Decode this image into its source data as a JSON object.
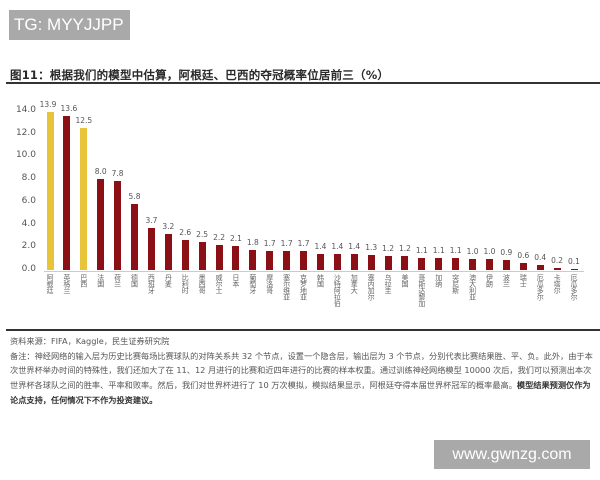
{
  "watermarks": {
    "top": "TG: MYYJJPP",
    "bottom": "www.gwnzg.com"
  },
  "figure": {
    "title": "图11：根据我们的模型中估算，阿根廷、巴西的夺冠概率位居前三（%）"
  },
  "chart_data": {
    "type": "bar",
    "title": "图11：根据我们的模型中估算，阿根廷、巴西的夺冠概率位居前三（%）",
    "xlabel": "",
    "ylabel": "%",
    "ylim": [
      0,
      14
    ],
    "yticks": [
      "0.0",
      "2.0",
      "4.0",
      "6.0",
      "8.0",
      "10.0",
      "12.0",
      "14.0"
    ],
    "grid": false,
    "legend": null,
    "categories": [
      "阿根廷",
      "英格兰",
      "巴西",
      "法国",
      "荷兰",
      "德国",
      "西班牙",
      "丹麦",
      "比利时",
      "墨西哥",
      "威尔士",
      "日本",
      "葡萄牙",
      "摩洛哥",
      "塞尔维亚",
      "克罗地亚",
      "韩国",
      "沙特阿拉伯",
      "加拿大",
      "塞内加尔",
      "乌拉圭",
      "美国",
      "哥斯达黎加",
      "加纳",
      "突尼斯",
      "澳大利亚",
      "伊朗",
      "波兰",
      "瑞士",
      "厄瓜多尔",
      "卡塔尔",
      "厄瓜多尔"
    ],
    "values": [
      13.9,
      13.6,
      12.5,
      8.0,
      7.8,
      5.8,
      3.7,
      3.2,
      2.6,
      2.5,
      2.2,
      2.1,
      1.8,
      1.7,
      1.7,
      1.7,
      1.4,
      1.4,
      1.4,
      1.3,
      1.2,
      1.2,
      1.1,
      1.1,
      1.1,
      1.0,
      1.0,
      0.9,
      0.6,
      0.4,
      0.2,
      0.1
    ],
    "value_labels": [
      "13.9",
      "13.6",
      "12.5",
      "8.0",
      "7.8",
      "5.8",
      "3.7",
      "3.2",
      "2.6",
      "2.5",
      "2.2",
      "2.1",
      "1.8",
      "1.7",
      "1.7",
      "1.7",
      "1.4",
      "1.4",
      "1.4",
      "1.3",
      "1.2",
      "1.2",
      "1.1",
      "1.1",
      "1.1",
      "1.0",
      "1.0",
      "0.9",
      "0.6",
      "0.4",
      "0.2",
      "0.1"
    ],
    "highlight_indices": [
      0,
      2
    ],
    "colors": {
      "highlight": "#e8c43a",
      "default": "#8b1016"
    }
  },
  "notes": {
    "source": "资料来源：FIFA，Kaggle，民生证券研究院",
    "remark": "备注：神经网络的输入层为历史比赛每场比赛球队的对阵关系共 32 个节点，设置一个隐含层，输出层为 3 个节点，分别代表比赛结果胜、平、负。此外，由于本次世界杯举办时间的特殊性，我们还加大了在 11、12 月进行的比赛和近四年进行的比赛的样本权重。通过训练神经网络模型 10000 次后，我们可以预测出本次世界杯各球队之间的胜率、平率和败率。然后，我们对世界杯进行了 10 万次模拟，模拟结果显示，阿根廷夺得本届世界杯冠军的概率最高。",
    "disclaimer": "模型结果预测仅作为论点支持，任何情况下不作为投资建议。"
  }
}
